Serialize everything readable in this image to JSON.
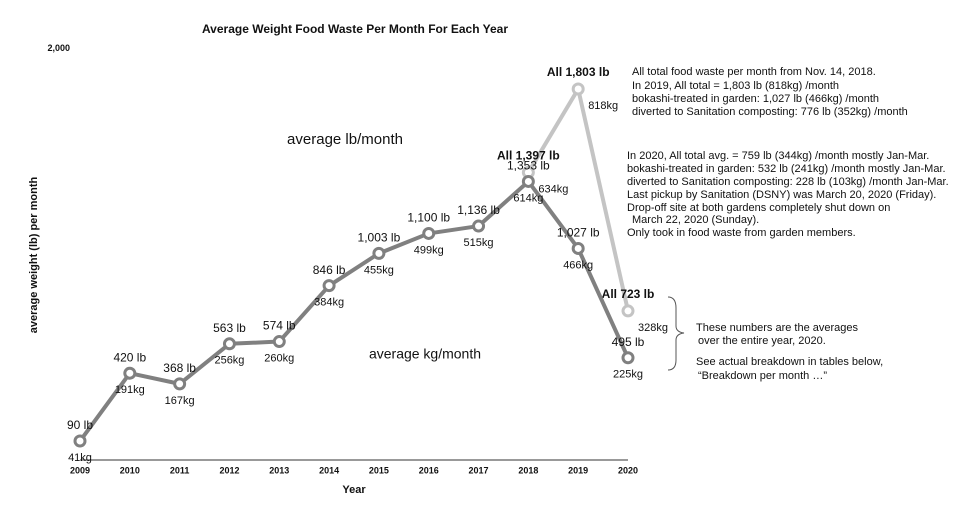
{
  "chart_data": {
    "type": "line",
    "title": "Average Weight Food Waste Per Month For Each Year",
    "x_label": "Year",
    "y_label": "average weight (lb) per month",
    "categories": [
      "2009",
      "2010",
      "2011",
      "2012",
      "2013",
      "2014",
      "2015",
      "2016",
      "2017",
      "2018",
      "2019",
      "2020"
    ],
    "ylim": [
      0,
      2000
    ],
    "yticks": [
      {
        "value": 2000,
        "label": "2,000"
      }
    ],
    "series": [
      {
        "color": "#808080",
        "values": [
          90,
          420,
          368,
          563,
          574,
          846,
          1003,
          1100,
          1136,
          1353,
          1027,
          495
        ],
        "value_labels": [
          "90 lb",
          "420 lb",
          "368 lb",
          "563 lb",
          "574 lb",
          "846 lb",
          "1,003 lb",
          "1,100 lb",
          "1,136 lb",
          "1,353 lb",
          "1,027 lb",
          "495 lb"
        ],
        "kg_labels": [
          "41kg",
          "191kg",
          "167kg",
          "256kg",
          "260kg",
          "384kg",
          "455kg",
          "499kg",
          "515kg",
          "614kg",
          "466kg",
          "225kg"
        ]
      },
      {
        "color": "#c4c4c4",
        "values": [
          null,
          null,
          null,
          null,
          null,
          null,
          null,
          null,
          null,
          1397,
          1803,
          723
        ],
        "value_labels": [
          null,
          null,
          null,
          null,
          null,
          null,
          null,
          null,
          null,
          "All 1,397 lb",
          "All 1,803 lb",
          "All 723 lb"
        ],
        "kg_labels": [
          null,
          null,
          null,
          null,
          null,
          null,
          null,
          null,
          null,
          "634kg",
          "818kg",
          "328kg"
        ]
      }
    ],
    "annotations": [
      "average lb/month",
      "average kg/month",
      "All total food waste per month from Nov. 14, 2018.",
      "In 2019, All total = 1,803 lb (818kg) /month",
      "bokashi-treated in garden: 1,027 lb (466kg) /month",
      "diverted to Sanitation composting: 776 lb (352kg) /month",
      "In 2020, All total avg. = 759 lb (344kg) /month mostly Jan-Mar.",
      "bokashi-treated in garden: 532 lb (241kg) /month mostly Jan-Mar.",
      "diverted to Sanitation composting: 228 lb (103kg) /month Jan-Mar.",
      "Last pickup by Sanitation (DSNY) was March 20, 2020 (Friday).",
      "Drop-off site at both gardens completely shut down on",
      "March 22, 2020 (Sunday).",
      "Only took in food waste from garden members.",
      "These numbers are the averages",
      "over the entire year, 2020.",
      "See actual breakdown in tables below,",
      "“Breakdown per month …”"
    ]
  }
}
